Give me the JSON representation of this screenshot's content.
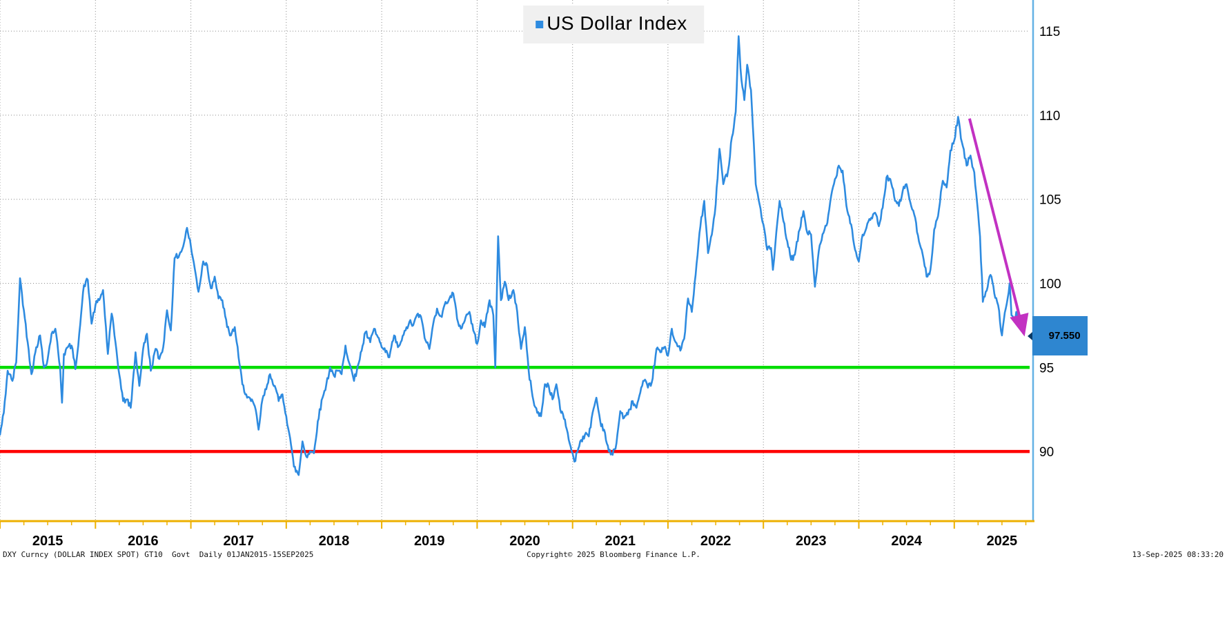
{
  "header": {
    "legend_label": "US Dollar Index"
  },
  "price_tag": {
    "value": "97.550"
  },
  "footer": {
    "left": "DXY Curncy (DOLLAR INDEX SPOT) GT10  Govt  Daily 01JAN2015-15SEP2025",
    "center": "Copyright© 2025 Bloomberg Finance L.P.",
    "right": "13-Sep-2025 08:33:20"
  },
  "colors": {
    "series": "#2e8be0",
    "support_green": "#00dd00",
    "support_red": "#ff0000",
    "trend_arrow": "#c231c2",
    "right_axis": "#63b1e5",
    "bottom_axis": "#edb000",
    "gridline": "#8a8a8a",
    "price_tag_bg": "#2e86d0",
    "legend_bg": "#f0f0f0"
  },
  "chart_data": {
    "type": "line",
    "title": "US Dollar Index",
    "subtitle": "",
    "xlabel": "",
    "ylabel": "",
    "period": "Daily 01JAN2015-15SEP2025",
    "grid": true,
    "legend_position": "top-center",
    "x_ticks": [
      2015,
      2016,
      2017,
      2018,
      2019,
      2020,
      2021,
      2022,
      2023,
      2024,
      2025
    ],
    "y_ticks": [
      90,
      95,
      100,
      105,
      110,
      115
    ],
    "x_range": [
      2015.0,
      2025.79
    ],
    "y_range": [
      85.86,
      116.85
    ],
    "last_value": 97.55,
    "last_value_label": "97.550",
    "reference_lines": [
      {
        "value": 95,
        "color": "#00dd00",
        "name": "green-support-line"
      },
      {
        "value": 90,
        "color": "#ff0000",
        "name": "red-support-line"
      }
    ],
    "trend_arrow": {
      "from": [
        2025.16,
        109.8
      ],
      "to": [
        2025.73,
        97.0
      ],
      "color": "#c231c2"
    },
    "series": [
      {
        "name": "US Dollar Index",
        "color": "#2e8be0",
        "points": [
          [
            2015.0,
            91.0
          ],
          [
            2015.04,
            92.3
          ],
          [
            2015.08,
            94.8
          ],
          [
            2015.13,
            94.2
          ],
          [
            2015.17,
            95.3
          ],
          [
            2015.21,
            100.3
          ],
          [
            2015.25,
            98.4
          ],
          [
            2015.29,
            96.5
          ],
          [
            2015.33,
            94.6
          ],
          [
            2015.38,
            96.2
          ],
          [
            2015.42,
            96.9
          ],
          [
            2015.46,
            95.0
          ],
          [
            2015.5,
            95.5
          ],
          [
            2015.54,
            97.0
          ],
          [
            2015.58,
            97.3
          ],
          [
            2015.63,
            95.0
          ],
          [
            2015.65,
            92.9
          ],
          [
            2015.67,
            95.8
          ],
          [
            2015.71,
            96.2
          ],
          [
            2015.75,
            96.3
          ],
          [
            2015.79,
            94.9
          ],
          [
            2015.83,
            97.0
          ],
          [
            2015.88,
            99.9
          ],
          [
            2015.92,
            100.2
          ],
          [
            2015.96,
            97.6
          ],
          [
            2016.0,
            98.7
          ],
          [
            2016.04,
            99.0
          ],
          [
            2016.08,
            99.6
          ],
          [
            2016.13,
            95.8
          ],
          [
            2016.17,
            98.2
          ],
          [
            2016.21,
            96.5
          ],
          [
            2016.25,
            94.6
          ],
          [
            2016.29,
            93.0
          ],
          [
            2016.33,
            93.1
          ],
          [
            2016.37,
            92.6
          ],
          [
            2016.42,
            95.9
          ],
          [
            2016.46,
            93.9
          ],
          [
            2016.5,
            96.1
          ],
          [
            2016.54,
            97.0
          ],
          [
            2016.58,
            94.8
          ],
          [
            2016.63,
            96.1
          ],
          [
            2016.67,
            95.5
          ],
          [
            2016.71,
            96.2
          ],
          [
            2016.75,
            98.4
          ],
          [
            2016.79,
            97.2
          ],
          [
            2016.83,
            101.5
          ],
          [
            2016.88,
            101.7
          ],
          [
            2016.92,
            102.2
          ],
          [
            2016.96,
            103.3
          ],
          [
            2017.0,
            102.2
          ],
          [
            2017.04,
            100.9
          ],
          [
            2017.08,
            99.5
          ],
          [
            2017.13,
            101.3
          ],
          [
            2017.17,
            101.1
          ],
          [
            2017.21,
            99.7
          ],
          [
            2017.25,
            100.4
          ],
          [
            2017.29,
            99.1
          ],
          [
            2017.33,
            99.0
          ],
          [
            2017.38,
            97.4
          ],
          [
            2017.42,
            96.9
          ],
          [
            2017.46,
            97.4
          ],
          [
            2017.5,
            95.6
          ],
          [
            2017.54,
            94.0
          ],
          [
            2017.58,
            93.4
          ],
          [
            2017.63,
            93.0
          ],
          [
            2017.67,
            92.7
          ],
          [
            2017.71,
            91.3
          ],
          [
            2017.75,
            93.1
          ],
          [
            2017.79,
            93.7
          ],
          [
            2017.83,
            94.6
          ],
          [
            2017.88,
            93.9
          ],
          [
            2017.92,
            93.0
          ],
          [
            2017.96,
            93.4
          ],
          [
            2018.0,
            92.1
          ],
          [
            2018.04,
            90.8
          ],
          [
            2018.08,
            89.1
          ],
          [
            2018.13,
            88.6
          ],
          [
            2018.17,
            90.6
          ],
          [
            2018.21,
            89.7
          ],
          [
            2018.25,
            90.0
          ],
          [
            2018.29,
            89.9
          ],
          [
            2018.33,
            91.8
          ],
          [
            2018.38,
            93.2
          ],
          [
            2018.42,
            94.0
          ],
          [
            2018.46,
            95.0
          ],
          [
            2018.5,
            94.5
          ],
          [
            2018.54,
            94.8
          ],
          [
            2018.58,
            94.6
          ],
          [
            2018.62,
            96.3
          ],
          [
            2018.67,
            95.1
          ],
          [
            2018.71,
            94.2
          ],
          [
            2018.75,
            95.1
          ],
          [
            2018.79,
            96.0
          ],
          [
            2018.83,
            97.1
          ],
          [
            2018.88,
            96.5
          ],
          [
            2018.92,
            97.3
          ],
          [
            2018.96,
            96.8
          ],
          [
            2019.0,
            96.2
          ],
          [
            2019.04,
            95.9
          ],
          [
            2019.08,
            95.6
          ],
          [
            2019.13,
            96.9
          ],
          [
            2019.17,
            96.2
          ],
          [
            2019.21,
            96.6
          ],
          [
            2019.25,
            97.2
          ],
          [
            2019.29,
            97.7
          ],
          [
            2019.33,
            97.5
          ],
          [
            2019.38,
            98.2
          ],
          [
            2019.42,
            97.8
          ],
          [
            2019.46,
            96.6
          ],
          [
            2019.5,
            96.1
          ],
          [
            2019.54,
            97.6
          ],
          [
            2019.58,
            98.5
          ],
          [
            2019.63,
            98.0
          ],
          [
            2019.67,
            98.9
          ],
          [
            2019.71,
            99.1
          ],
          [
            2019.75,
            99.4
          ],
          [
            2019.79,
            97.9
          ],
          [
            2019.83,
            97.3
          ],
          [
            2019.88,
            98.0
          ],
          [
            2019.92,
            98.3
          ],
          [
            2019.96,
            97.2
          ],
          [
            2020.0,
            96.4
          ],
          [
            2020.04,
            97.8
          ],
          [
            2020.08,
            97.4
          ],
          [
            2020.13,
            99.0
          ],
          [
            2020.17,
            98.1
          ],
          [
            2020.19,
            95.0
          ],
          [
            2020.22,
            102.8
          ],
          [
            2020.25,
            99.0
          ],
          [
            2020.29,
            100.1
          ],
          [
            2020.33,
            99.0
          ],
          [
            2020.38,
            99.6
          ],
          [
            2020.42,
            98.3
          ],
          [
            2020.46,
            96.1
          ],
          [
            2020.5,
            97.4
          ],
          [
            2020.54,
            94.8
          ],
          [
            2020.58,
            93.3
          ],
          [
            2020.63,
            92.3
          ],
          [
            2020.67,
            92.1
          ],
          [
            2020.71,
            94.0
          ],
          [
            2020.75,
            93.9
          ],
          [
            2020.79,
            93.1
          ],
          [
            2020.83,
            94.0
          ],
          [
            2020.88,
            92.3
          ],
          [
            2020.92,
            91.9
          ],
          [
            2020.96,
            90.7
          ],
          [
            2021.0,
            89.9
          ],
          [
            2021.02,
            89.4
          ],
          [
            2021.08,
            90.6
          ],
          [
            2021.13,
            91.0
          ],
          [
            2021.17,
            90.9
          ],
          [
            2021.21,
            92.3
          ],
          [
            2021.25,
            93.2
          ],
          [
            2021.29,
            91.8
          ],
          [
            2021.33,
            91.3
          ],
          [
            2021.38,
            90.0
          ],
          [
            2021.42,
            89.8
          ],
          [
            2021.46,
            90.5
          ],
          [
            2021.5,
            92.4
          ],
          [
            2021.54,
            92.0
          ],
          [
            2021.58,
            92.2
          ],
          [
            2021.63,
            93.0
          ],
          [
            2021.67,
            92.6
          ],
          [
            2021.71,
            93.5
          ],
          [
            2021.75,
            94.2
          ],
          [
            2021.79,
            93.8
          ],
          [
            2021.83,
            94.1
          ],
          [
            2021.88,
            96.1
          ],
          [
            2021.92,
            95.9
          ],
          [
            2021.96,
            96.2
          ],
          [
            2022.0,
            95.7
          ],
          [
            2022.04,
            97.3
          ],
          [
            2022.08,
            96.5
          ],
          [
            2022.13,
            96.0
          ],
          [
            2022.17,
            96.7
          ],
          [
            2022.21,
            99.1
          ],
          [
            2022.25,
            98.3
          ],
          [
            2022.29,
            100.5
          ],
          [
            2022.33,
            103.0
          ],
          [
            2022.38,
            104.9
          ],
          [
            2022.42,
            101.8
          ],
          [
            2022.46,
            102.9
          ],
          [
            2022.5,
            104.7
          ],
          [
            2022.54,
            108.0
          ],
          [
            2022.58,
            105.9
          ],
          [
            2022.63,
            106.7
          ],
          [
            2022.67,
            108.7
          ],
          [
            2022.71,
            110.2
          ],
          [
            2022.74,
            114.7
          ],
          [
            2022.77,
            112.1
          ],
          [
            2022.8,
            110.9
          ],
          [
            2022.83,
            113.0
          ],
          [
            2022.87,
            111.5
          ],
          [
            2022.92,
            105.9
          ],
          [
            2022.96,
            104.7
          ],
          [
            2023.0,
            103.5
          ],
          [
            2023.04,
            102.0
          ],
          [
            2023.08,
            102.1
          ],
          [
            2023.1,
            100.8
          ],
          [
            2023.17,
            104.9
          ],
          [
            2023.21,
            103.7
          ],
          [
            2023.25,
            102.5
          ],
          [
            2023.29,
            101.4
          ],
          [
            2023.33,
            101.7
          ],
          [
            2023.38,
            103.2
          ],
          [
            2023.42,
            104.3
          ],
          [
            2023.46,
            103.0
          ],
          [
            2023.5,
            102.9
          ],
          [
            2023.54,
            99.8
          ],
          [
            2023.58,
            101.9
          ],
          [
            2023.63,
            103.0
          ],
          [
            2023.67,
            103.6
          ],
          [
            2023.71,
            105.2
          ],
          [
            2023.75,
            106.2
          ],
          [
            2023.79,
            107.0
          ],
          [
            2023.83,
            106.7
          ],
          [
            2023.88,
            104.3
          ],
          [
            2023.92,
            103.5
          ],
          [
            2023.96,
            102.0
          ],
          [
            2024.0,
            101.3
          ],
          [
            2024.04,
            102.9
          ],
          [
            2024.08,
            103.3
          ],
          [
            2024.13,
            103.9
          ],
          [
            2024.17,
            104.2
          ],
          [
            2024.21,
            103.4
          ],
          [
            2024.25,
            104.5
          ],
          [
            2024.29,
            106.3
          ],
          [
            2024.33,
            106.2
          ],
          [
            2024.38,
            104.9
          ],
          [
            2024.42,
            104.6
          ],
          [
            2024.46,
            105.5
          ],
          [
            2024.5,
            105.9
          ],
          [
            2024.54,
            104.8
          ],
          [
            2024.58,
            104.1
          ],
          [
            2024.63,
            102.5
          ],
          [
            2024.67,
            101.7
          ],
          [
            2024.71,
            100.4
          ],
          [
            2024.75,
            100.8
          ],
          [
            2024.79,
            103.2
          ],
          [
            2024.83,
            104.0
          ],
          [
            2024.88,
            106.1
          ],
          [
            2024.92,
            105.7
          ],
          [
            2024.96,
            107.9
          ],
          [
            2025.0,
            108.5
          ],
          [
            2025.04,
            109.9
          ],
          [
            2025.08,
            108.4
          ],
          [
            2025.13,
            107.0
          ],
          [
            2025.17,
            107.6
          ],
          [
            2025.21,
            106.6
          ],
          [
            2025.25,
            104.2
          ],
          [
            2025.27,
            102.8
          ],
          [
            2025.3,
            98.9
          ],
          [
            2025.33,
            99.5
          ],
          [
            2025.38,
            100.5
          ],
          [
            2025.42,
            99.4
          ],
          [
            2025.46,
            98.7
          ],
          [
            2025.5,
            96.9
          ],
          [
            2025.54,
            98.5
          ],
          [
            2025.58,
            100.0
          ],
          [
            2025.6,
            98.1
          ],
          [
            2025.63,
            97.8
          ],
          [
            2025.65,
            98.3
          ],
          [
            2025.67,
            97.7
          ],
          [
            2025.69,
            97.9
          ],
          [
            2025.71,
            97.55
          ]
        ]
      }
    ]
  }
}
